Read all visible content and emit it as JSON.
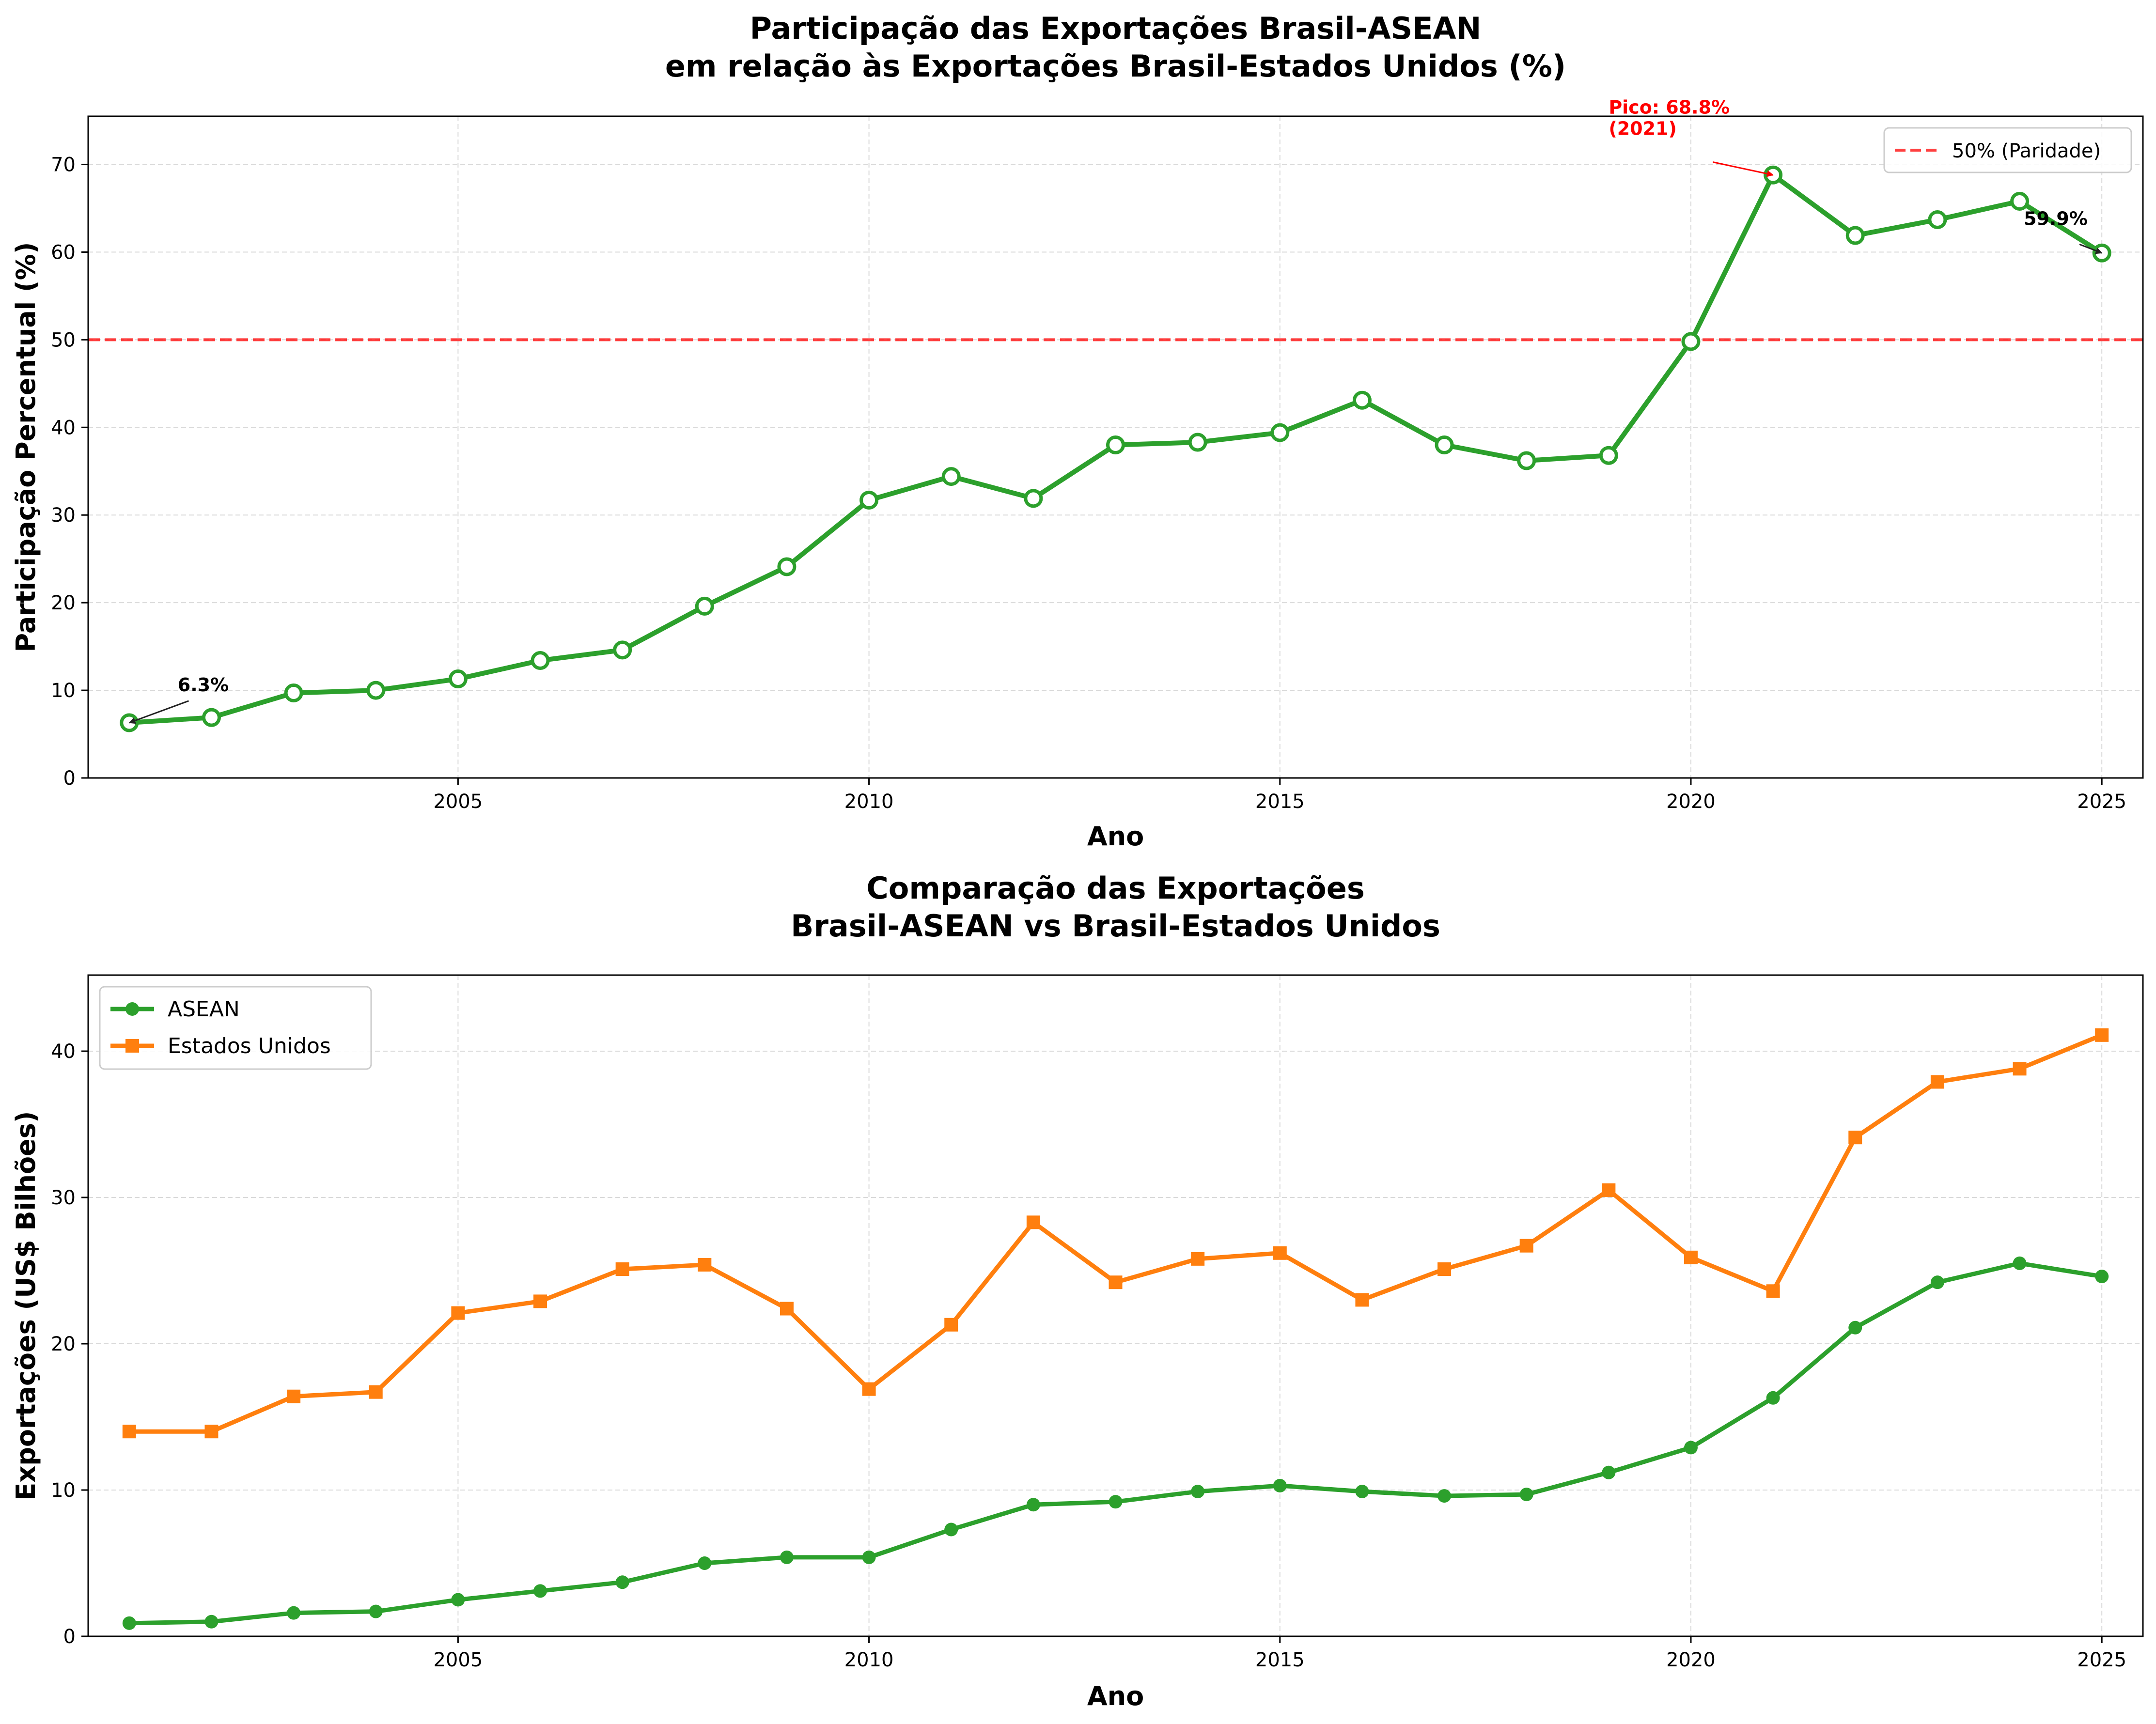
{
  "chart_data": [
    {
      "type": "line",
      "title": "Participação das Exportações Brasil-ASEAN\nem relação às Exportações Brasil-Estados Unidos (%)",
      "xlabel": "Ano",
      "ylabel": "Participação Percentual (%)",
      "xlim": [
        2000.5,
        2025.5
      ],
      "ylim": [
        0,
        75.5
      ],
      "xticks": [
        2005,
        2010,
        2015,
        2020,
        2025
      ],
      "yticks": [
        0,
        10,
        20,
        30,
        40,
        50,
        60,
        70
      ],
      "grid": true,
      "legend_position": "top-right",
      "x": [
        2001,
        2002,
        2003,
        2004,
        2005,
        2006,
        2007,
        2008,
        2009,
        2010,
        2011,
        2012,
        2013,
        2014,
        2015,
        2016,
        2017,
        2018,
        2019,
        2020,
        2021,
        2022,
        2023,
        2024,
        2025
      ],
      "series": [
        {
          "values": [
            6.3,
            6.9,
            9.7,
            10.0,
            11.3,
            13.4,
            14.6,
            19.6,
            24.1,
            31.7,
            34.4,
            31.9,
            38.0,
            38.3,
            39.4,
            43.1,
            38.0,
            36.2,
            36.8,
            49.8,
            68.8,
            61.9,
            63.7,
            65.8,
            59.9
          ],
          "color": "#2ca02c",
          "marker": "open-circle"
        }
      ],
      "reference_line": {
        "y": 50,
        "label": "50% (Paridade)",
        "color": "#ff0000"
      },
      "annotations": [
        {
          "text": "6.3%",
          "x": 2001,
          "y": 6.3,
          "color": "#000000"
        },
        {
          "text": "Pico: 68.8%\n(2021)",
          "x": 2021,
          "y": 68.8,
          "color": "#ff0000"
        },
        {
          "text": "59.9%",
          "x": 2025,
          "y": 59.9,
          "color": "#000000"
        }
      ]
    },
    {
      "type": "line",
      "title": "Comparação das Exportações\nBrasil-ASEAN vs Brasil-Estados Unidos",
      "xlabel": "Ano",
      "ylabel": "Exportações (US$ Bilhões)",
      "xlim": [
        2000.5,
        2025.5
      ],
      "ylim": [
        0,
        45.2
      ],
      "xticks": [
        2005,
        2010,
        2015,
        2020,
        2025
      ],
      "yticks": [
        0,
        10,
        20,
        30,
        40
      ],
      "grid": true,
      "legend_position": "top-left",
      "x": [
        2001,
        2002,
        2003,
        2004,
        2005,
        2006,
        2007,
        2008,
        2009,
        2010,
        2011,
        2012,
        2013,
        2014,
        2015,
        2016,
        2017,
        2018,
        2019,
        2020,
        2021,
        2022,
        2023,
        2024,
        2025
      ],
      "series": [
        {
          "name": "ASEAN",
          "values": [
            0.9,
            1.0,
            1.6,
            1.7,
            2.5,
            3.1,
            3.7,
            5.0,
            5.4,
            5.4,
            7.3,
            9.0,
            9.2,
            9.9,
            10.3,
            9.9,
            9.6,
            9.7,
            11.2,
            12.9,
            16.3,
            21.1,
            24.2,
            25.5,
            24.6
          ],
          "color": "#2ca02c",
          "marker": "circle"
        },
        {
          "name": "Estados Unidos",
          "values": [
            14.0,
            14.0,
            16.4,
            16.7,
            22.1,
            22.9,
            25.1,
            25.4,
            22.4,
            16.9,
            21.3,
            28.3,
            24.2,
            25.8,
            26.2,
            23.0,
            25.1,
            26.7,
            30.5,
            25.9,
            23.6,
            34.1,
            37.9,
            38.8,
            41.1
          ],
          "color": "#ff7f0e",
          "marker": "square"
        }
      ]
    }
  ]
}
